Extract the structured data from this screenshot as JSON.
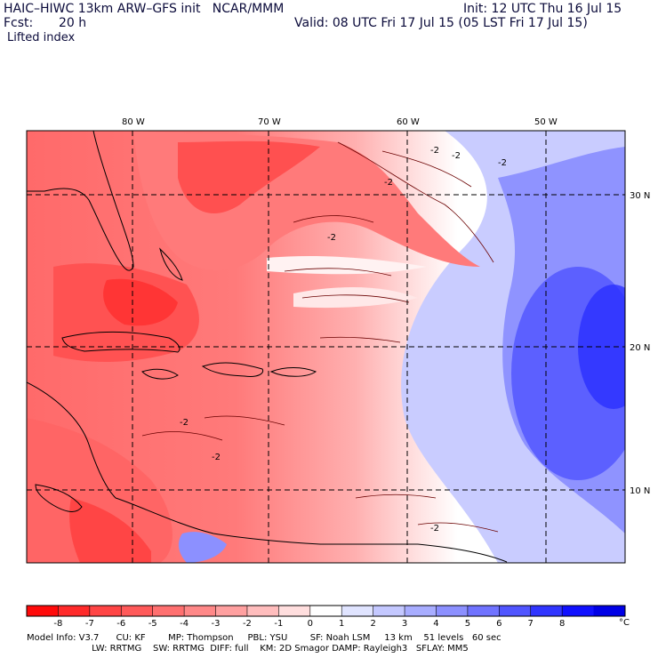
{
  "header": {
    "title_left": "HAIC–HIWC 13km ARW–GFS init   NCAR/MMM",
    "init": "Init: 12 UTC Thu 16 Jul 15",
    "fcst_label": "Fcst:",
    "fcst_value": "20 h",
    "valid": "Valid: 08 UTC Fri 17 Jul 15 (05 LST Fri 17 Jul 15)",
    "field": "Lifted index"
  },
  "map": {
    "lon_labels": [
      "80 W",
      "70 W",
      "60 W",
      "50 W"
    ],
    "lat_labels": [
      "30 N",
      "20 N",
      "10 N"
    ],
    "contour_labels": [
      "-2",
      "-2",
      "-2",
      "-2",
      "-2",
      "-2",
      "-2",
      "-2"
    ]
  },
  "colorbar": {
    "ticks": [
      "-8",
      "-7",
      "-6",
      "-5",
      "-4",
      "-3",
      "-2",
      "-1",
      "0",
      "1",
      "2",
      "3",
      "4",
      "5",
      "6",
      "7",
      "8"
    ],
    "unit": "°C",
    "colors": [
      "#ff0a0a",
      "#ff2a2a",
      "#ff4545",
      "#ff5a5a",
      "#ff7070",
      "#ff8888",
      "#ffa0a0",
      "#ffbdbd",
      "#ffdede",
      "#ffffff",
      "#e0e4ff",
      "#c4c8ff",
      "#a8adff",
      "#8c90ff",
      "#7073ff",
      "#5055ff",
      "#3035ff",
      "#1010ff",
      "#0000e6"
    ]
  },
  "model_info": {
    "line1": "Model Info: V3.7      CU: KF        MP: Thompson     PBL: YSU        SF: Noah LSM     13 km    51 levels   60 sec",
    "line2": "                       LW: RRTMG    SW: RRTMG  DIFF: full    KM: 2D Smagor DAMP: Rayleigh3   SFLAY: MM5"
  }
}
